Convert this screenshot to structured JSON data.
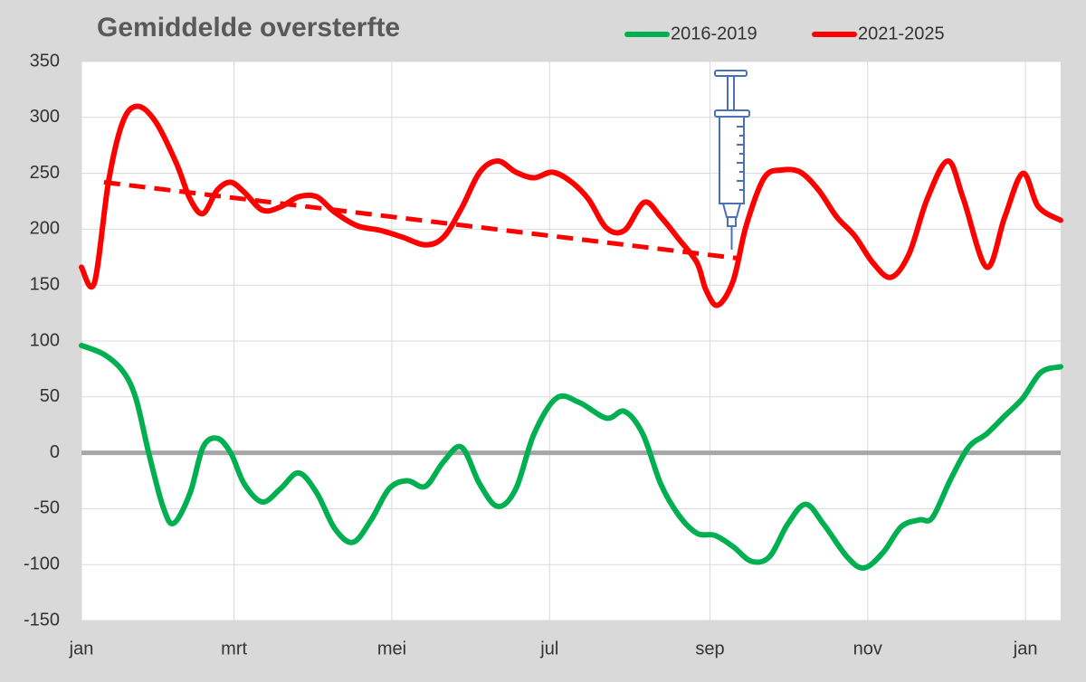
{
  "chart_data": {
    "type": "line",
    "title": "Gemiddelde oversterfte",
    "xlim": [
      0,
      378.6
    ],
    "xticks": [
      {
        "value": 0,
        "label": "jan"
      },
      {
        "value": 59,
        "label": "mrt"
      },
      {
        "value": 120,
        "label": "mei"
      },
      {
        "value": 181,
        "label": "jul"
      },
      {
        "value": 243,
        "label": "sep"
      },
      {
        "value": 304,
        "label": "nov"
      },
      {
        "value": 365,
        "label": "jan"
      }
    ],
    "ylim": [
      -150,
      350
    ],
    "yticks": [
      -150,
      -100,
      -50,
      0,
      50,
      100,
      150,
      200,
      250,
      300,
      350
    ],
    "grid": true,
    "legend": "top",
    "series": [
      {
        "name": "2016-2019",
        "color": "#00b050",
        "x": [
          0,
          8.7,
          16,
          21,
          26,
          31.5,
          35.7,
          42,
          47,
          52.5,
          57.7,
          63,
          70,
          77,
          84,
          91,
          98,
          105,
          112,
          119,
          126,
          133,
          140,
          147,
          154,
          161,
          168,
          175,
          183.7,
          192.5,
          203,
          210,
          217,
          224,
          231,
          238,
          245,
          252,
          259,
          266,
          273,
          280,
          287,
          296,
          302.6,
          310,
          317,
          324,
          329,
          336,
          343,
          350,
          357,
          364,
          371,
          378.6
        ],
        "values": [
          96,
          88,
          73,
          49,
          0,
          -48,
          -63,
          -36,
          5,
          13,
          0,
          -28,
          -44,
          -32,
          -18,
          -36,
          -68,
          -80,
          -60,
          -32,
          -25,
          -30,
          -8,
          5,
          -28,
          -48,
          -32,
          17,
          49,
          45,
          31,
          37,
          17,
          -28,
          -56,
          -72,
          -74,
          -84,
          -97,
          -93,
          -64,
          -46,
          -64,
          -93,
          -103,
          -89,
          -66,
          -60,
          -58,
          -24,
          5,
          17,
          33,
          49,
          72,
          77
        ]
      },
      {
        "name": "2021-2025",
        "color": "#ff0000",
        "x": [
          0,
          5,
          10.5,
          16,
          21.7,
          28.7,
          36.7,
          42,
          47,
          52.5,
          57.7,
          63,
          70,
          77,
          84,
          91,
          98,
          106.7,
          115.5,
          124,
          133,
          140,
          147,
          154,
          161,
          168,
          175,
          182,
          189,
          196,
          203,
          210,
          217.6,
          224,
          231,
          238,
          241.4,
          246,
          252,
          257,
          264,
          271,
          278,
          285,
          292,
          299,
          306,
          313,
          320,
          327,
          335,
          341,
          350,
          357,
          364,
          370,
          378.6
        ],
        "values": [
          166,
          152,
          243,
          296,
          310,
          296,
          259,
          227,
          214,
          235,
          242,
          233,
          217,
          220,
          229,
          229,
          215,
          203,
          199,
          193,
          186,
          193,
          219,
          251,
          261,
          251,
          246,
          251,
          243,
          227,
          201,
          199,
          224,
          211,
          191,
          170,
          146,
          132,
          154,
          203,
          246,
          253,
          251,
          235,
          211,
          194,
          170,
          157,
          178,
          227,
          261,
          227,
          166,
          211,
          250,
          220,
          208
        ]
      }
    ],
    "trendline": {
      "color": "#ff0000",
      "dashed": true,
      "x": [
        8.7,
        253.7
      ],
      "values": [
        242,
        174
      ]
    }
  }
}
